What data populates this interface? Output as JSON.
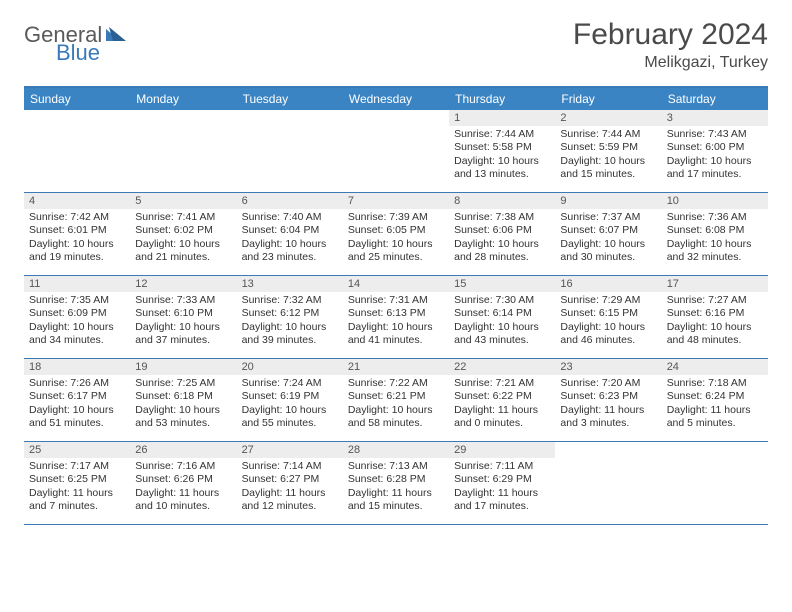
{
  "logo": {
    "general": "General",
    "blue": "Blue"
  },
  "title": "February 2024",
  "location": "Melikgazi, Turkey",
  "colors": {
    "header_bg": "#3a84c4",
    "border": "#3a7ab8",
    "daynum_bg": "#ededed",
    "text": "#333333",
    "title": "#4a4a4a"
  },
  "day_headers": [
    "Sunday",
    "Monday",
    "Tuesday",
    "Wednesday",
    "Thursday",
    "Friday",
    "Saturday"
  ],
  "weeks": [
    [
      {
        "num": "",
        "lines": []
      },
      {
        "num": "",
        "lines": []
      },
      {
        "num": "",
        "lines": []
      },
      {
        "num": "",
        "lines": []
      },
      {
        "num": "1",
        "lines": [
          "Sunrise: 7:44 AM",
          "Sunset: 5:58 PM",
          "Daylight: 10 hours and 13 minutes."
        ]
      },
      {
        "num": "2",
        "lines": [
          "Sunrise: 7:44 AM",
          "Sunset: 5:59 PM",
          "Daylight: 10 hours and 15 minutes."
        ]
      },
      {
        "num": "3",
        "lines": [
          "Sunrise: 7:43 AM",
          "Sunset: 6:00 PM",
          "Daylight: 10 hours and 17 minutes."
        ]
      }
    ],
    [
      {
        "num": "4",
        "lines": [
          "Sunrise: 7:42 AM",
          "Sunset: 6:01 PM",
          "Daylight: 10 hours and 19 minutes."
        ]
      },
      {
        "num": "5",
        "lines": [
          "Sunrise: 7:41 AM",
          "Sunset: 6:02 PM",
          "Daylight: 10 hours and 21 minutes."
        ]
      },
      {
        "num": "6",
        "lines": [
          "Sunrise: 7:40 AM",
          "Sunset: 6:04 PM",
          "Daylight: 10 hours and 23 minutes."
        ]
      },
      {
        "num": "7",
        "lines": [
          "Sunrise: 7:39 AM",
          "Sunset: 6:05 PM",
          "Daylight: 10 hours and 25 minutes."
        ]
      },
      {
        "num": "8",
        "lines": [
          "Sunrise: 7:38 AM",
          "Sunset: 6:06 PM",
          "Daylight: 10 hours and 28 minutes."
        ]
      },
      {
        "num": "9",
        "lines": [
          "Sunrise: 7:37 AM",
          "Sunset: 6:07 PM",
          "Daylight: 10 hours and 30 minutes."
        ]
      },
      {
        "num": "10",
        "lines": [
          "Sunrise: 7:36 AM",
          "Sunset: 6:08 PM",
          "Daylight: 10 hours and 32 minutes."
        ]
      }
    ],
    [
      {
        "num": "11",
        "lines": [
          "Sunrise: 7:35 AM",
          "Sunset: 6:09 PM",
          "Daylight: 10 hours and 34 minutes."
        ]
      },
      {
        "num": "12",
        "lines": [
          "Sunrise: 7:33 AM",
          "Sunset: 6:10 PM",
          "Daylight: 10 hours and 37 minutes."
        ]
      },
      {
        "num": "13",
        "lines": [
          "Sunrise: 7:32 AM",
          "Sunset: 6:12 PM",
          "Daylight: 10 hours and 39 minutes."
        ]
      },
      {
        "num": "14",
        "lines": [
          "Sunrise: 7:31 AM",
          "Sunset: 6:13 PM",
          "Daylight: 10 hours and 41 minutes."
        ]
      },
      {
        "num": "15",
        "lines": [
          "Sunrise: 7:30 AM",
          "Sunset: 6:14 PM",
          "Daylight: 10 hours and 43 minutes."
        ]
      },
      {
        "num": "16",
        "lines": [
          "Sunrise: 7:29 AM",
          "Sunset: 6:15 PM",
          "Daylight: 10 hours and 46 minutes."
        ]
      },
      {
        "num": "17",
        "lines": [
          "Sunrise: 7:27 AM",
          "Sunset: 6:16 PM",
          "Daylight: 10 hours and 48 minutes."
        ]
      }
    ],
    [
      {
        "num": "18",
        "lines": [
          "Sunrise: 7:26 AM",
          "Sunset: 6:17 PM",
          "Daylight: 10 hours and 51 minutes."
        ]
      },
      {
        "num": "19",
        "lines": [
          "Sunrise: 7:25 AM",
          "Sunset: 6:18 PM",
          "Daylight: 10 hours and 53 minutes."
        ]
      },
      {
        "num": "20",
        "lines": [
          "Sunrise: 7:24 AM",
          "Sunset: 6:19 PM",
          "Daylight: 10 hours and 55 minutes."
        ]
      },
      {
        "num": "21",
        "lines": [
          "Sunrise: 7:22 AM",
          "Sunset: 6:21 PM",
          "Daylight: 10 hours and 58 minutes."
        ]
      },
      {
        "num": "22",
        "lines": [
          "Sunrise: 7:21 AM",
          "Sunset: 6:22 PM",
          "Daylight: 11 hours and 0 minutes."
        ]
      },
      {
        "num": "23",
        "lines": [
          "Sunrise: 7:20 AM",
          "Sunset: 6:23 PM",
          "Daylight: 11 hours and 3 minutes."
        ]
      },
      {
        "num": "24",
        "lines": [
          "Sunrise: 7:18 AM",
          "Sunset: 6:24 PM",
          "Daylight: 11 hours and 5 minutes."
        ]
      }
    ],
    [
      {
        "num": "25",
        "lines": [
          "Sunrise: 7:17 AM",
          "Sunset: 6:25 PM",
          "Daylight: 11 hours and 7 minutes."
        ]
      },
      {
        "num": "26",
        "lines": [
          "Sunrise: 7:16 AM",
          "Sunset: 6:26 PM",
          "Daylight: 11 hours and 10 minutes."
        ]
      },
      {
        "num": "27",
        "lines": [
          "Sunrise: 7:14 AM",
          "Sunset: 6:27 PM",
          "Daylight: 11 hours and 12 minutes."
        ]
      },
      {
        "num": "28",
        "lines": [
          "Sunrise: 7:13 AM",
          "Sunset: 6:28 PM",
          "Daylight: 11 hours and 15 minutes."
        ]
      },
      {
        "num": "29",
        "lines": [
          "Sunrise: 7:11 AM",
          "Sunset: 6:29 PM",
          "Daylight: 11 hours and 17 minutes."
        ]
      },
      {
        "num": "",
        "lines": []
      },
      {
        "num": "",
        "lines": []
      }
    ]
  ]
}
